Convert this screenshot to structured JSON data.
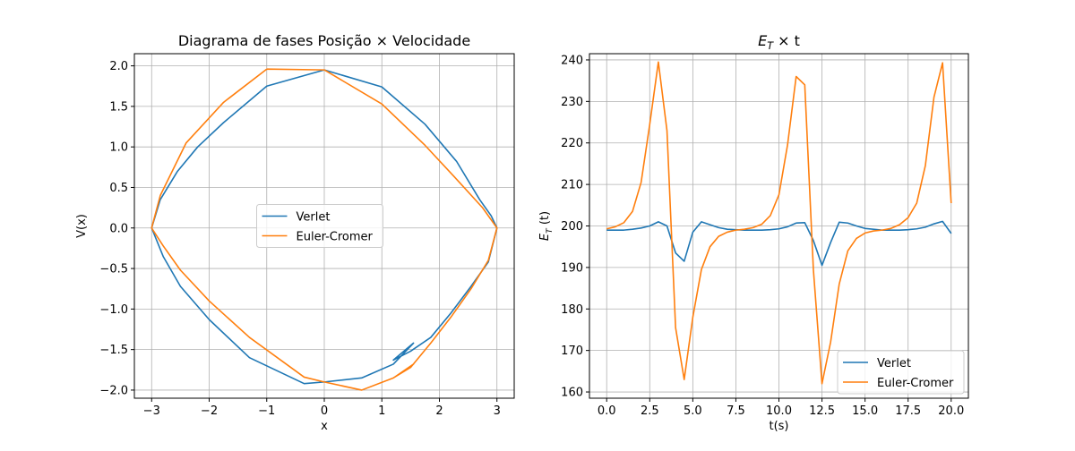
{
  "chart_data": [
    {
      "type": "line",
      "title": "Diagrama de fases Posição × Velocidade",
      "xlabel": "x",
      "ylabel": "V(x)",
      "xlim": [
        -3.3,
        3.3
      ],
      "ylim": [
        -2.1,
        2.15
      ],
      "xticks": [
        -3,
        -2,
        -1,
        0,
        1,
        2,
        3
      ],
      "xtick_labels": [
        "−3",
        "−2",
        "−1",
        "0",
        "1",
        "2",
        "3"
      ],
      "yticks": [
        -2.0,
        -1.5,
        -1.0,
        -0.5,
        0.0,
        0.5,
        1.0,
        1.5,
        2.0
      ],
      "ytick_labels": [
        "−2.0",
        "−1.5",
        "−1.0",
        "−0.5",
        "0.0",
        "0.5",
        "1.0",
        "1.5",
        "2.0"
      ],
      "grid": true,
      "legend_position": "center",
      "series": [
        {
          "name": "Verlet",
          "color": "#1f77b4",
          "points": [
            [
              0.0,
              1.95
            ],
            [
              1.0,
              1.74
            ],
            [
              1.75,
              1.28
            ],
            [
              2.3,
              0.82
            ],
            [
              2.7,
              0.35
            ],
            [
              2.9,
              0.15
            ],
            [
              3.0,
              0.0
            ],
            [
              2.85,
              -0.42
            ],
            [
              2.55,
              -0.72
            ],
            [
              2.2,
              -1.05
            ],
            [
              1.85,
              -1.35
            ],
            [
              1.5,
              -1.52
            ],
            [
              1.2,
              -1.63
            ],
            [
              1.55,
              -1.42
            ],
            [
              1.2,
              -1.68
            ],
            [
              0.65,
              -1.85
            ],
            [
              0.0,
              -1.9
            ],
            [
              -0.35,
              -1.92
            ],
            [
              -1.3,
              -1.6
            ],
            [
              -2.0,
              -1.13
            ],
            [
              -2.5,
              -0.72
            ],
            [
              -2.8,
              -0.35
            ],
            [
              -3.0,
              0.0
            ],
            [
              -2.85,
              0.35
            ],
            [
              -2.55,
              0.7
            ],
            [
              -2.2,
              1.0
            ],
            [
              -1.75,
              1.3
            ],
            [
              -1.0,
              1.75
            ],
            [
              0.0,
              1.95
            ]
          ]
        },
        {
          "name": "Euler-Cromer",
          "color": "#ff7f0e",
          "points": [
            [
              -1.0,
              1.96
            ],
            [
              0.0,
              1.95
            ],
            [
              1.0,
              1.53
            ],
            [
              1.75,
              1.02
            ],
            [
              2.3,
              0.6
            ],
            [
              2.75,
              0.25
            ],
            [
              3.0,
              0.0
            ],
            [
              2.85,
              -0.4
            ],
            [
              2.55,
              -0.75
            ],
            [
              2.2,
              -1.1
            ],
            [
              1.85,
              -1.42
            ],
            [
              1.5,
              -1.72
            ],
            [
              1.2,
              -1.85
            ],
            [
              1.55,
              -1.68
            ],
            [
              1.2,
              -1.85
            ],
            [
              0.65,
              -2.0
            ],
            [
              0.0,
              -1.9
            ],
            [
              -0.35,
              -1.84
            ],
            [
              -1.3,
              -1.35
            ],
            [
              -2.0,
              -0.9
            ],
            [
              -2.5,
              -0.52
            ],
            [
              -2.8,
              -0.22
            ],
            [
              -3.0,
              0.0
            ],
            [
              -2.85,
              0.4
            ],
            [
              -2.4,
              1.05
            ],
            [
              -1.75,
              1.55
            ],
            [
              -1.0,
              1.96
            ]
          ]
        }
      ]
    },
    {
      "type": "line",
      "title": "E_T × t",
      "title_parts": {
        "main": "E",
        "sub": "T",
        "rest": " × t"
      },
      "xlabel": "t(s)",
      "ylabel": "E_T (t)",
      "ylabel_parts": {
        "main": "E",
        "sub": "T",
        "rest": " (t)"
      },
      "xlim": [
        -1.0,
        21.0
      ],
      "ylim": [
        158.5,
        241.5
      ],
      "xticks": [
        0.0,
        2.5,
        5.0,
        7.5,
        10.0,
        12.5,
        15.0,
        17.5,
        20.0
      ],
      "xtick_labels": [
        "0.0",
        "2.5",
        "5.0",
        "7.5",
        "10.0",
        "12.5",
        "15.0",
        "17.5",
        "20.0"
      ],
      "yticks": [
        160,
        170,
        180,
        190,
        200,
        210,
        220,
        230,
        240
      ],
      "ytick_labels": [
        "160",
        "170",
        "180",
        "190",
        "200",
        "210",
        "220",
        "230",
        "240"
      ],
      "grid": true,
      "legend_position": "lower right",
      "series": [
        {
          "name": "Verlet",
          "color": "#1f77b4",
          "points": [
            [
              0.0,
              199.0
            ],
            [
              1.0,
              199.0
            ],
            [
              1.5,
              199.2
            ],
            [
              2.0,
              199.5
            ],
            [
              2.5,
              200.0
            ],
            [
              3.0,
              201.0
            ],
            [
              3.5,
              200.0
            ],
            [
              4.0,
              193.5
            ],
            [
              4.5,
              191.5
            ],
            [
              5.0,
              198.5
            ],
            [
              5.5,
              201.0
            ],
            [
              6.0,
              200.3
            ],
            [
              6.5,
              199.6
            ],
            [
              7.0,
              199.2
            ],
            [
              8.0,
              199.0
            ],
            [
              9.0,
              199.0
            ],
            [
              9.5,
              199.1
            ],
            [
              10.0,
              199.3
            ],
            [
              10.5,
              199.8
            ],
            [
              11.0,
              200.7
            ],
            [
              11.5,
              200.8
            ],
            [
              12.0,
              196.5
            ],
            [
              12.5,
              190.5
            ],
            [
              13.0,
              196.0
            ],
            [
              13.5,
              200.9
            ],
            [
              14.0,
              200.7
            ],
            [
              14.5,
              200.0
            ],
            [
              15.0,
              199.4
            ],
            [
              16.0,
              199.0
            ],
            [
              17.0,
              199.0
            ],
            [
              17.5,
              199.1
            ],
            [
              18.0,
              199.3
            ],
            [
              18.5,
              199.7
            ],
            [
              19.0,
              200.5
            ],
            [
              19.5,
              201.1
            ],
            [
              20.0,
              198.2
            ]
          ]
        },
        {
          "name": "Euler-Cromer",
          "color": "#ff7f0e",
          "points": [
            [
              0.0,
              199.3
            ],
            [
              0.5,
              199.8
            ],
            [
              1.0,
              200.8
            ],
            [
              1.5,
              203.5
            ],
            [
              2.0,
              210.5
            ],
            [
              2.5,
              224.5
            ],
            [
              3.0,
              239.5
            ],
            [
              3.5,
              223.0
            ],
            [
              4.0,
              175.5
            ],
            [
              4.5,
              163.0
            ],
            [
              5.0,
              178.0
            ],
            [
              5.5,
              189.5
            ],
            [
              6.0,
              195.0
            ],
            [
              6.5,
              197.5
            ],
            [
              7.0,
              198.5
            ],
            [
              7.5,
              199.0
            ],
            [
              8.0,
              199.2
            ],
            [
              8.5,
              199.6
            ],
            [
              9.0,
              200.4
            ],
            [
              9.5,
              202.5
            ],
            [
              10.0,
              207.5
            ],
            [
              10.5,
              219.5
            ],
            [
              11.0,
              236.0
            ],
            [
              11.5,
              234.0
            ],
            [
              12.0,
              189.5
            ],
            [
              12.5,
              162.0
            ],
            [
              13.0,
              172.0
            ],
            [
              13.5,
              186.0
            ],
            [
              14.0,
              194.0
            ],
            [
              14.5,
              197.0
            ],
            [
              15.0,
              198.3
            ],
            [
              15.5,
              198.8
            ],
            [
              16.0,
              199.0
            ],
            [
              16.5,
              199.4
            ],
            [
              17.0,
              200.3
            ],
            [
              17.5,
              202.0
            ],
            [
              18.0,
              205.5
            ],
            [
              18.5,
              214.5
            ],
            [
              19.0,
              231.0
            ],
            [
              19.5,
              239.3
            ],
            [
              20.0,
              205.5
            ]
          ]
        }
      ]
    }
  ]
}
